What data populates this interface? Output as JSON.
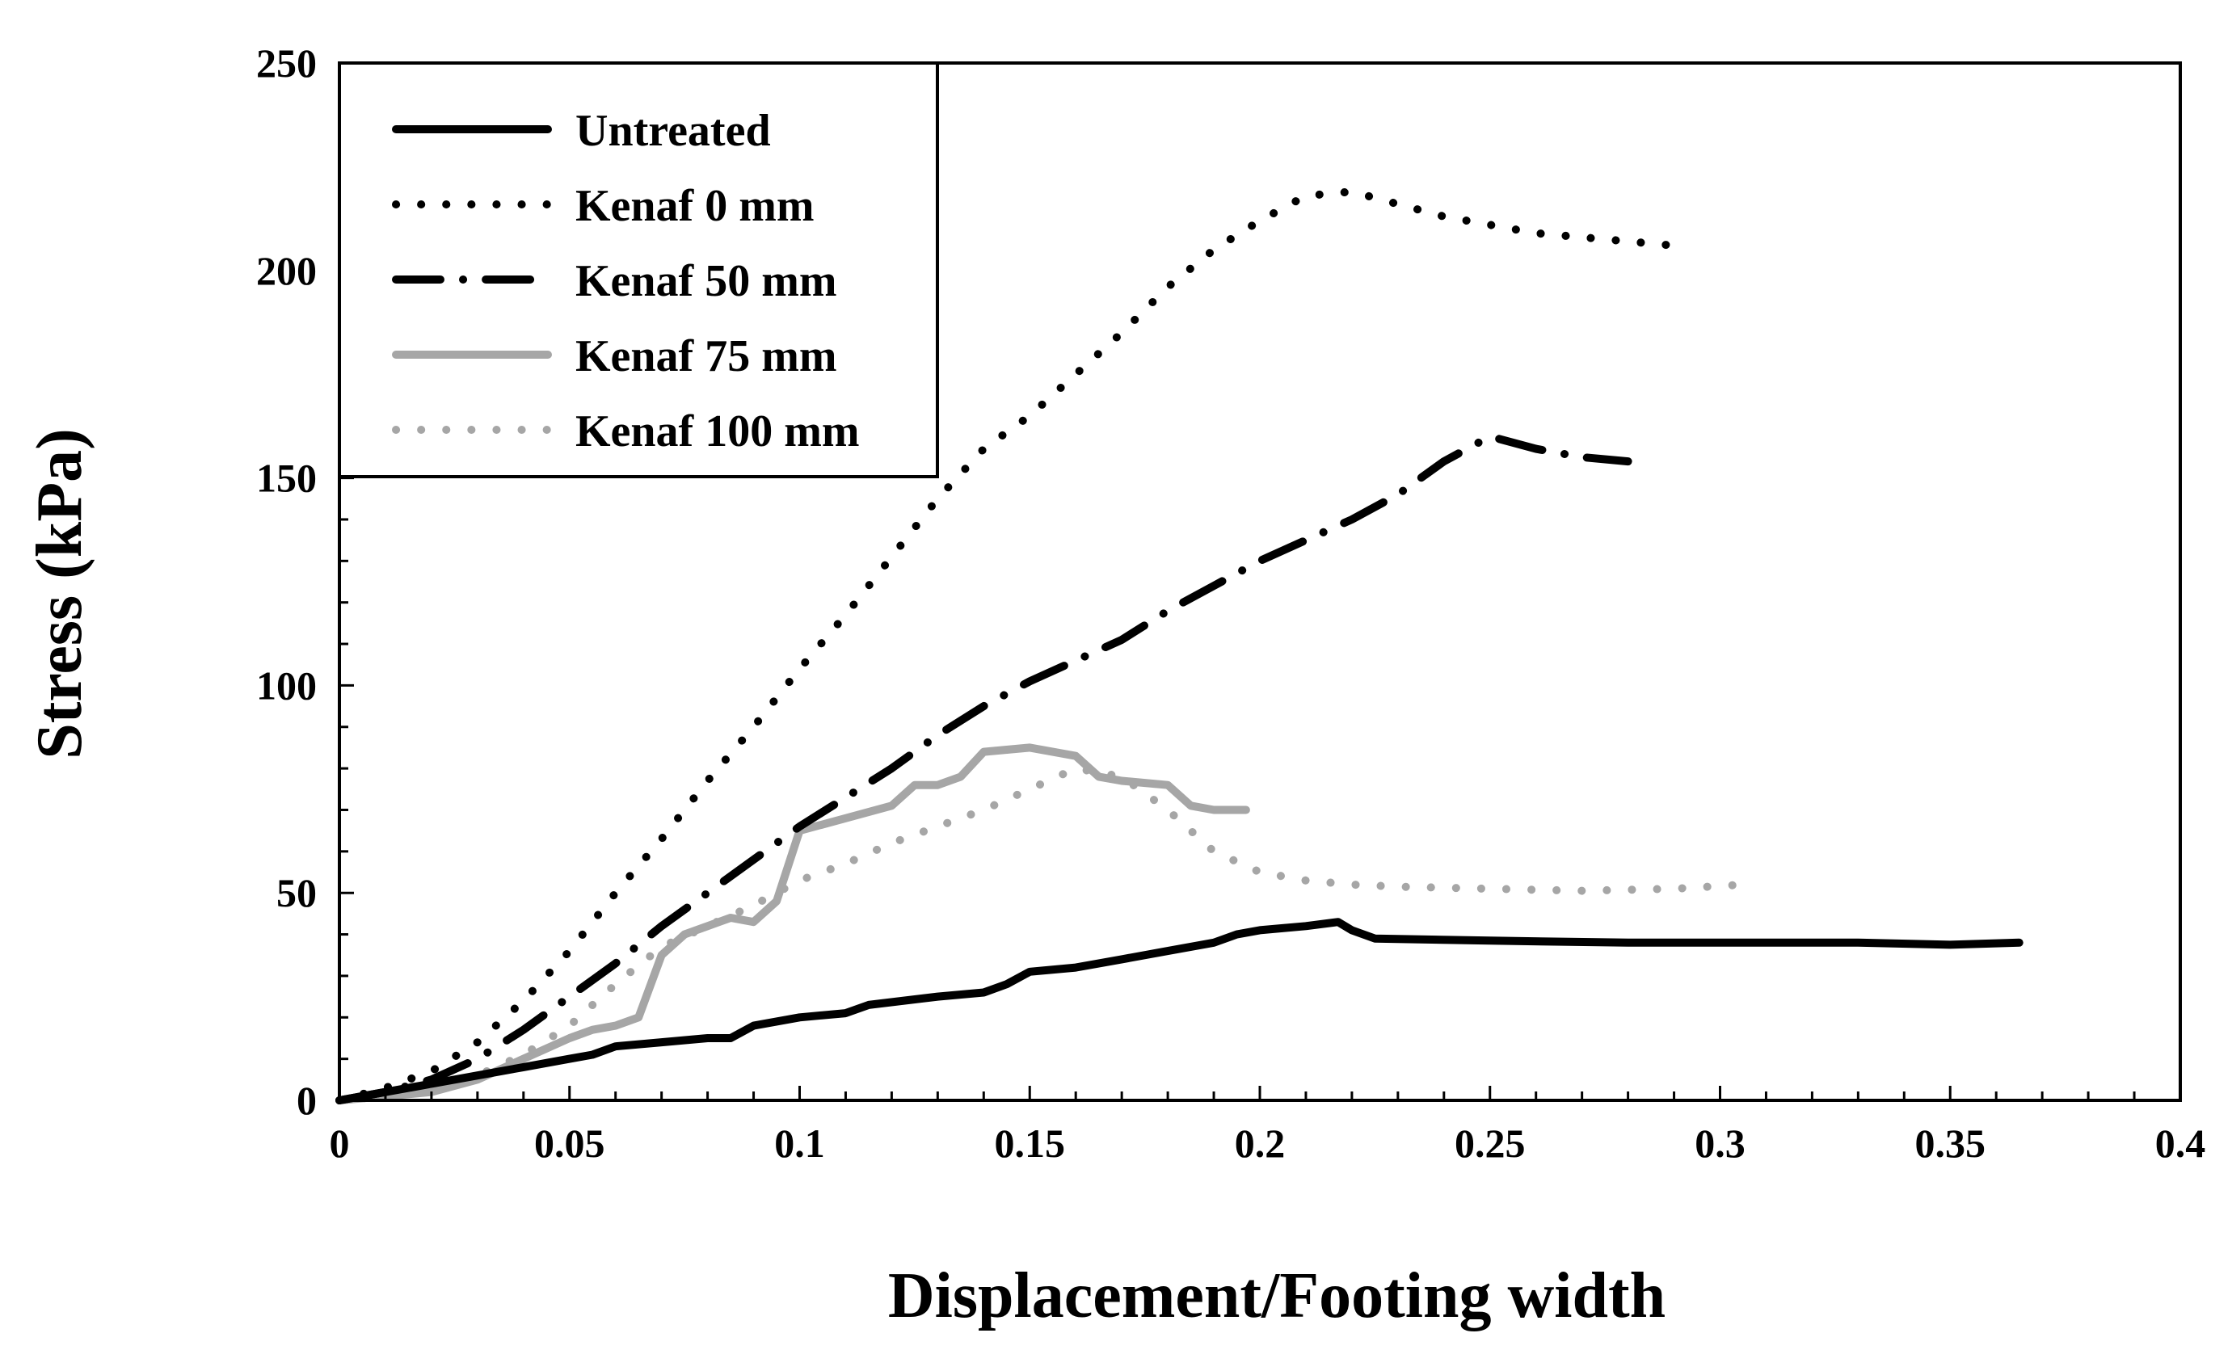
{
  "chart_data": {
    "type": "line",
    "title": "",
    "xlabel": "Displacement/Footing width",
    "ylabel": "Stress (kPa)",
    "xlim": [
      0,
      0.4
    ],
    "ylim": [
      0,
      250
    ],
    "x_ticks": [
      "0",
      "0.05",
      "0.1",
      "0.15",
      "0.2",
      "0.25",
      "0.3",
      "0.35",
      "0.4"
    ],
    "y_ticks": [
      "0",
      "50",
      "100",
      "150",
      "200",
      "250"
    ],
    "x_tick_values": [
      0,
      0.05,
      0.1,
      0.15,
      0.2,
      0.25,
      0.3,
      0.35,
      0.4
    ],
    "y_tick_values": [
      0,
      50,
      100,
      150,
      200,
      250
    ],
    "legend_position": "top-left",
    "grid": false,
    "series": [
      {
        "name": "Untreated",
        "color": "#000000",
        "style": "solid",
        "points": [
          [
            0,
            0
          ],
          [
            0.01,
            2
          ],
          [
            0.02,
            4
          ],
          [
            0.03,
            6
          ],
          [
            0.04,
            8
          ],
          [
            0.05,
            10
          ],
          [
            0.055,
            11
          ],
          [
            0.06,
            13
          ],
          [
            0.07,
            14
          ],
          [
            0.08,
            15
          ],
          [
            0.085,
            15
          ],
          [
            0.09,
            18
          ],
          [
            0.1,
            20
          ],
          [
            0.11,
            21
          ],
          [
            0.115,
            23
          ],
          [
            0.13,
            25
          ],
          [
            0.14,
            26
          ],
          [
            0.145,
            28
          ],
          [
            0.15,
            31
          ],
          [
            0.16,
            32
          ],
          [
            0.17,
            34
          ],
          [
            0.18,
            36
          ],
          [
            0.19,
            38
          ],
          [
            0.195,
            40
          ],
          [
            0.2,
            41
          ],
          [
            0.21,
            42
          ],
          [
            0.217,
            43
          ],
          [
            0.22,
            41
          ],
          [
            0.225,
            39
          ],
          [
            0.25,
            38.5
          ],
          [
            0.28,
            38
          ],
          [
            0.3,
            38
          ],
          [
            0.33,
            38
          ],
          [
            0.35,
            37.5
          ],
          [
            0.365,
            38
          ]
        ]
      },
      {
        "name": "Kenaf 0 mm",
        "color": "#000000",
        "style": "dotted",
        "points": [
          [
            0,
            0
          ],
          [
            0.01,
            3
          ],
          [
            0.02,
            7
          ],
          [
            0.03,
            14
          ],
          [
            0.04,
            24
          ],
          [
            0.05,
            36
          ],
          [
            0.06,
            50
          ],
          [
            0.07,
            63
          ],
          [
            0.08,
            77
          ],
          [
            0.09,
            90
          ],
          [
            0.1,
            104
          ],
          [
            0.11,
            117
          ],
          [
            0.12,
            131
          ],
          [
            0.13,
            145
          ],
          [
            0.14,
            157
          ],
          [
            0.15,
            165
          ],
          [
            0.16,
            175
          ],
          [
            0.17,
            185
          ],
          [
            0.18,
            196
          ],
          [
            0.19,
            205
          ],
          [
            0.2,
            212
          ],
          [
            0.21,
            218
          ],
          [
            0.22,
            219
          ],
          [
            0.23,
            216
          ],
          [
            0.24,
            213
          ],
          [
            0.25,
            211
          ],
          [
            0.26,
            209
          ],
          [
            0.27,
            208
          ],
          [
            0.28,
            207
          ],
          [
            0.29,
            206
          ]
        ]
      },
      {
        "name": "Kenaf 50 mm",
        "color": "#000000",
        "style": "dashdot",
        "points": [
          [
            0,
            0
          ],
          [
            0.01,
            2
          ],
          [
            0.02,
            5
          ],
          [
            0.03,
            10
          ],
          [
            0.04,
            17
          ],
          [
            0.05,
            25
          ],
          [
            0.06,
            33
          ],
          [
            0.07,
            42
          ],
          [
            0.08,
            50
          ],
          [
            0.09,
            58
          ],
          [
            0.1,
            66
          ],
          [
            0.11,
            73
          ],
          [
            0.12,
            80
          ],
          [
            0.13,
            88
          ],
          [
            0.14,
            95
          ],
          [
            0.15,
            101
          ],
          [
            0.16,
            106
          ],
          [
            0.17,
            111
          ],
          [
            0.18,
            118
          ],
          [
            0.19,
            124
          ],
          [
            0.2,
            130
          ],
          [
            0.21,
            135
          ],
          [
            0.22,
            140
          ],
          [
            0.23,
            146
          ],
          [
            0.24,
            154
          ],
          [
            0.25,
            160
          ],
          [
            0.26,
            157
          ],
          [
            0.27,
            155
          ],
          [
            0.28,
            154
          ]
        ]
      },
      {
        "name": "Kenaf 75 mm",
        "color": "#a6a6a6",
        "style": "solid",
        "points": [
          [
            0,
            0
          ],
          [
            0.01,
            1
          ],
          [
            0.02,
            2
          ],
          [
            0.03,
            5
          ],
          [
            0.04,
            10
          ],
          [
            0.05,
            15
          ],
          [
            0.055,
            17
          ],
          [
            0.06,
            18
          ],
          [
            0.065,
            20
          ],
          [
            0.07,
            35
          ],
          [
            0.075,
            40
          ],
          [
            0.08,
            42
          ],
          [
            0.085,
            44
          ],
          [
            0.09,
            43
          ],
          [
            0.095,
            48
          ],
          [
            0.1,
            65
          ],
          [
            0.11,
            68
          ],
          [
            0.12,
            71
          ],
          [
            0.125,
            76
          ],
          [
            0.13,
            76
          ],
          [
            0.135,
            78
          ],
          [
            0.14,
            84
          ],
          [
            0.15,
            85
          ],
          [
            0.16,
            83
          ],
          [
            0.165,
            78
          ],
          [
            0.17,
            77
          ],
          [
            0.18,
            76
          ],
          [
            0.185,
            71
          ],
          [
            0.19,
            70
          ],
          [
            0.197,
            70
          ]
        ]
      },
      {
        "name": "Kenaf 100 mm",
        "color": "#a6a6a6",
        "style": "dotted",
        "points": [
          [
            0,
            0
          ],
          [
            0.01,
            1
          ],
          [
            0.02,
            3
          ],
          [
            0.03,
            6
          ],
          [
            0.04,
            11
          ],
          [
            0.05,
            18
          ],
          [
            0.06,
            28
          ],
          [
            0.07,
            37
          ],
          [
            0.08,
            42
          ],
          [
            0.09,
            47
          ],
          [
            0.1,
            53
          ],
          [
            0.11,
            57
          ],
          [
            0.12,
            62
          ],
          [
            0.13,
            66
          ],
          [
            0.14,
            70
          ],
          [
            0.15,
            75
          ],
          [
            0.16,
            80
          ],
          [
            0.17,
            78
          ],
          [
            0.18,
            70
          ],
          [
            0.19,
            60
          ],
          [
            0.2,
            55
          ],
          [
            0.21,
            53
          ],
          [
            0.22,
            52
          ],
          [
            0.23,
            51.5
          ],
          [
            0.25,
            51
          ],
          [
            0.27,
            50.5
          ],
          [
            0.29,
            51
          ],
          [
            0.305,
            52
          ]
        ]
      }
    ]
  }
}
